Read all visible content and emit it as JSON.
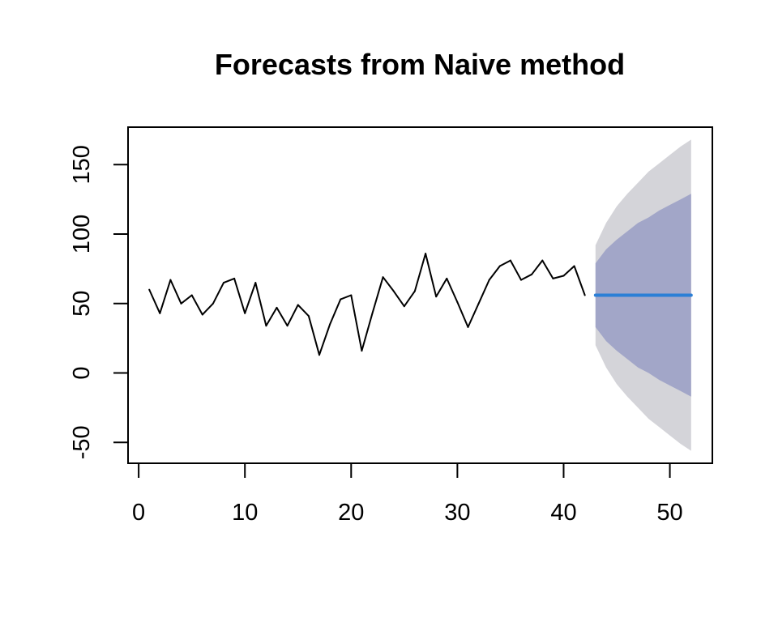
{
  "chart_data": {
    "type": "line",
    "title": "Forecasts from Naive method",
    "xlabel": "",
    "ylabel": "",
    "xlim": [
      -1,
      54
    ],
    "ylim": [
      -65,
      177
    ],
    "x_ticks": [
      0,
      10,
      20,
      30,
      40,
      50
    ],
    "y_ticks": [
      -50,
      0,
      50,
      100,
      150
    ],
    "grid": false,
    "colors": {
      "series": "#000000",
      "forecast": "#2b7fd6",
      "band80": "#a2a6c8",
      "band95": "#d4d4d9"
    },
    "series": [
      {
        "x": [
          1,
          2,
          3,
          4,
          5,
          6,
          7,
          8,
          9,
          10,
          11,
          12,
          13,
          14,
          15,
          16,
          17,
          18,
          19,
          20,
          21,
          22,
          23,
          24,
          25,
          26,
          27,
          28,
          29,
          30,
          31,
          32,
          33,
          34,
          35,
          36,
          37,
          38,
          39,
          40,
          41,
          42
        ],
        "values": [
          60,
          43,
          67,
          50,
          56,
          42,
          50,
          65,
          68,
          43,
          65,
          34,
          47,
          34,
          49,
          41,
          13,
          35,
          53,
          56,
          16,
          43,
          69,
          59,
          48,
          59,
          86,
          55,
          68,
          51,
          33,
          50,
          67,
          77,
          81,
          67,
          71,
          81,
          68,
          70,
          77,
          56
        ]
      }
    ],
    "forecast": {
      "x": [
        43,
        44,
        45,
        46,
        47,
        48,
        49,
        50,
        51,
        52
      ],
      "point": [
        56,
        56,
        56,
        56,
        56,
        56,
        56,
        56,
        56,
        56
      ],
      "lo80": [
        33,
        23,
        16,
        10,
        4,
        0,
        -5,
        -9,
        -13,
        -17
      ],
      "hi80": [
        79,
        89,
        96,
        102,
        108,
        112,
        117,
        121,
        125,
        129
      ],
      "lo95": [
        20,
        4,
        -8,
        -17,
        -25,
        -33,
        -39,
        -45,
        -51,
        -56
      ],
      "hi95": [
        92,
        108,
        120,
        129,
        137,
        145,
        151,
        157,
        163,
        168
      ]
    }
  }
}
